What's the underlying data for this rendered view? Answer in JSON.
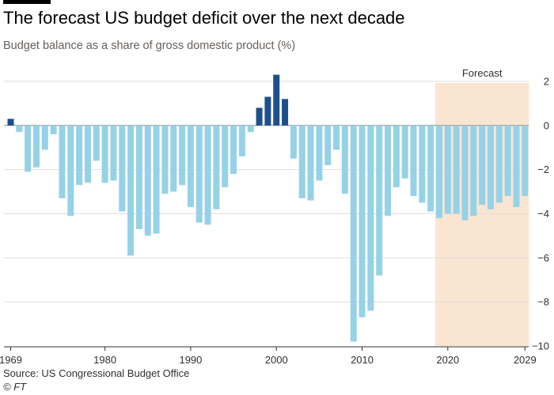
{
  "header": {
    "title": "The forecast US budget deficit over the next decade",
    "subtitle": "Budget balance as a share of gross domestic product (%)"
  },
  "footer": {
    "source": "Source: US Congressional Budget Office",
    "credit": "© FT"
  },
  "colors": {
    "surplus": "#1d4f8b",
    "deficit": "#96d2e7",
    "forecast_band": "#fae5d3",
    "gridline": "#e6ddd4",
    "zero_line": "#8c8c8c",
    "axis": "#33302e"
  },
  "chart_data": {
    "type": "bar",
    "title": "The forecast US budget deficit over the next decade",
    "subtitle": "Budget balance as a share of gross domestic product (%)",
    "xlabel": "",
    "ylabel": "",
    "ylim": [
      -10,
      2.5
    ],
    "yticks": [
      2,
      0,
      -2,
      -4,
      -6,
      -8,
      -10
    ],
    "xticks": [
      1969,
      1980,
      1990,
      2000,
      2010,
      2020,
      2029
    ],
    "grid": true,
    "y_axis_side": "right",
    "forecast": {
      "label": "Forecast",
      "start_year": 2019,
      "end_year": 2029
    },
    "categories": [
      1969,
      1970,
      1971,
      1972,
      1973,
      1974,
      1975,
      1976,
      1977,
      1978,
      1979,
      1980,
      1981,
      1982,
      1983,
      1984,
      1985,
      1986,
      1987,
      1988,
      1989,
      1990,
      1991,
      1992,
      1993,
      1994,
      1995,
      1996,
      1997,
      1998,
      1999,
      2000,
      2001,
      2002,
      2003,
      2004,
      2005,
      2006,
      2007,
      2008,
      2009,
      2010,
      2011,
      2012,
      2013,
      2014,
      2015,
      2016,
      2017,
      2018,
      2019,
      2020,
      2021,
      2022,
      2023,
      2024,
      2025,
      2026,
      2027,
      2028,
      2029
    ],
    "values": [
      0.3,
      -0.3,
      -2.1,
      -1.9,
      -1.1,
      -0.4,
      -3.3,
      -4.1,
      -2.7,
      -2.6,
      -1.6,
      -2.6,
      -2.5,
      -3.9,
      -5.9,
      -4.7,
      -5.0,
      -4.9,
      -3.1,
      -3.0,
      -2.7,
      -3.7,
      -4.4,
      -4.5,
      -3.8,
      -2.8,
      -2.2,
      -1.4,
      -0.3,
      0.8,
      1.3,
      2.3,
      1.2,
      -1.5,
      -3.3,
      -3.4,
      -2.5,
      -1.8,
      -1.1,
      -3.1,
      -9.8,
      -8.7,
      -8.4,
      -6.8,
      -4.1,
      -2.8,
      -2.4,
      -3.2,
      -3.5,
      -3.9,
      -4.2,
      -4.0,
      -4.0,
      -4.3,
      -4.1,
      -3.6,
      -3.8,
      -3.5,
      -3.2,
      -3.7,
      -3.2
    ]
  }
}
